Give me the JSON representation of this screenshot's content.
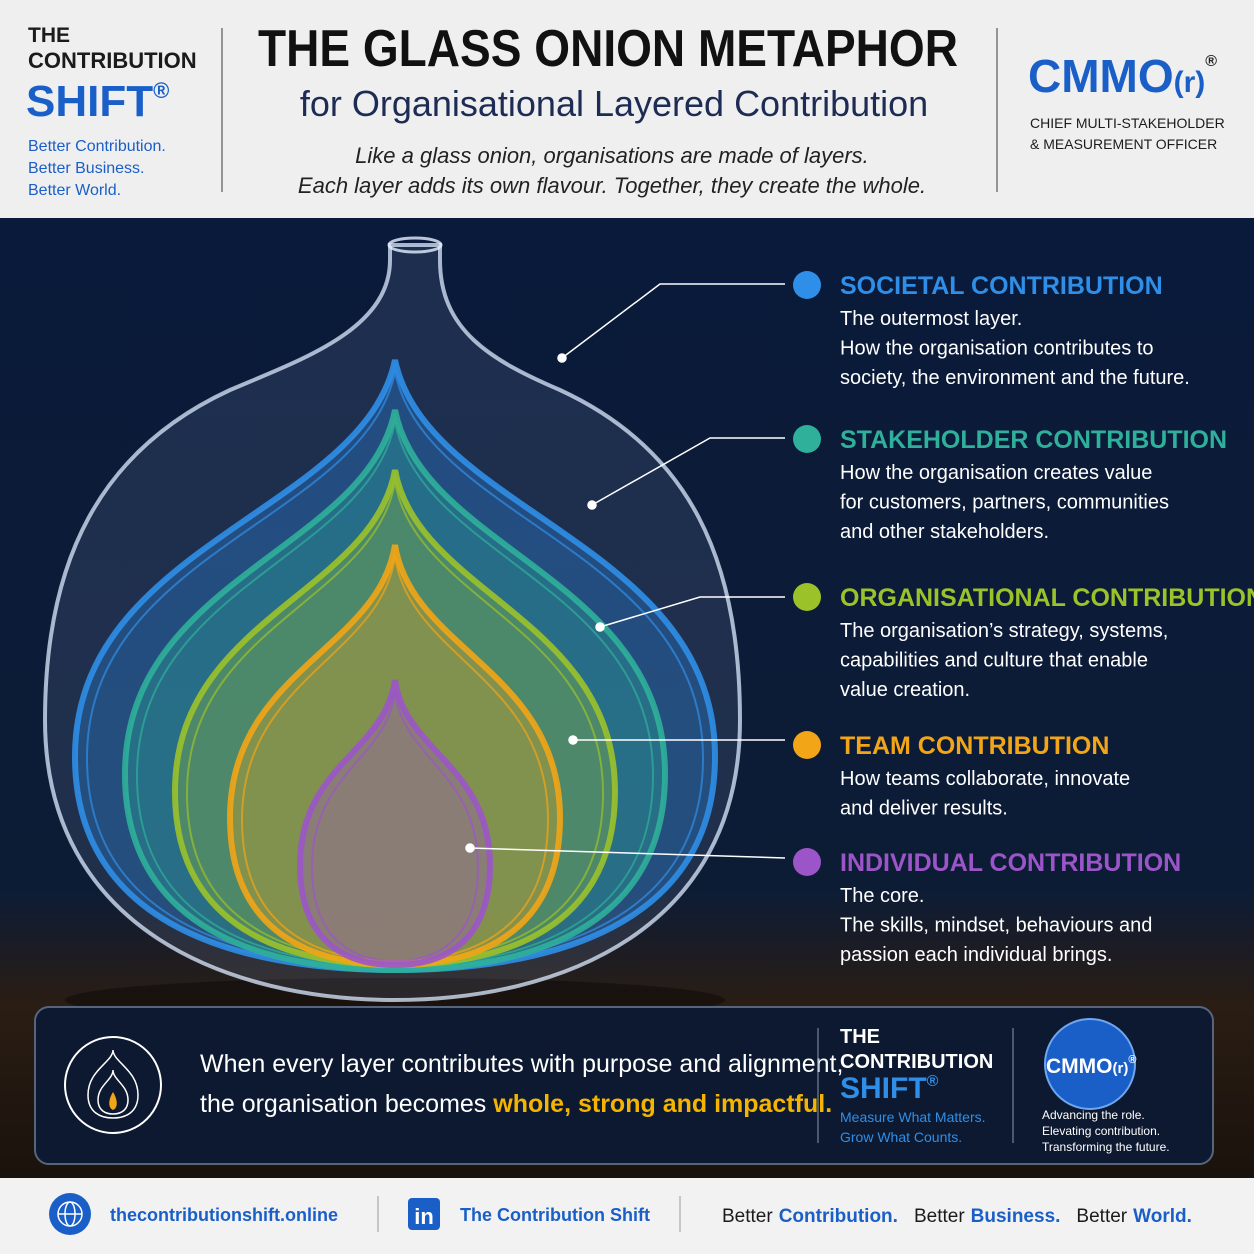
{
  "header": {
    "brand": {
      "line1": "THE",
      "line2": "CONTRIBUTION",
      "line3": "SHIFT",
      "mark": "®",
      "taglines": [
        "Better Contribution.",
        "Better Business.",
        "Better World."
      ]
    },
    "title": "THE GLASS ONION METAPHOR",
    "subtitle": "for Organisational Layered Contribution",
    "intro": [
      "Like a glass onion, organisations are made of layers.",
      "Each layer adds its own flavour.  Together, they create the whole."
    ],
    "cmmo": {
      "name": "CMMO",
      "suffix": "(r)",
      "mark": "®",
      "role": [
        "CHIEF MULTI-STAKEHOLDER",
        "& MEASUREMENT OFFICER"
      ]
    }
  },
  "layers": [
    {
      "title": "SOCIETAL CONTRIBUTION",
      "color": "#2f8fe8",
      "lines": [
        "The outermost layer.",
        "How the organisation contributes to",
        "society, the environment and the future."
      ]
    },
    {
      "title": "STAKEHOLDER CONTRIBUTION",
      "color": "#2fb09a",
      "lines": [
        "How the organisation creates value",
        "for customers, partners, communities",
        "and other stakeholders."
      ]
    },
    {
      "title": "ORGANISATIONAL CONTRIBUTION",
      "color": "#9cc22a",
      "lines": [
        "The organisation’s strategy, systems,",
        "capabilities and culture that enable",
        "value creation."
      ]
    },
    {
      "title": "TEAM CONTRIBUTION",
      "color": "#f2a516",
      "lines": [
        "How teams collaborate, innovate",
        "and deliver results."
      ]
    },
    {
      "title": "INDIVIDUAL CONTRIBUTION",
      "color": "#9b55c9",
      "lines": [
        "The core.",
        "The skills, mindset, behaviours and",
        "passion each individual brings."
      ]
    }
  ],
  "summary": {
    "line1": "When every layer contributes with purpose and alignment,",
    "line2": "the organisation becomes ",
    "highlight": "whole, strong and impactful",
    "end": ".",
    "brand": {
      "line1": "THE",
      "line2": "CONTRIBUTION",
      "line3": "SHIFT",
      "mark": "®",
      "taglines": [
        "Measure What Matters.",
        "Grow What Counts."
      ]
    },
    "cmmo": {
      "name": "CMMO",
      "suffix": "(r)",
      "mark": "®",
      "lines": [
        "Advancing the role.",
        "Elevating contribution.",
        "Transforming the future."
      ]
    }
  },
  "footer": {
    "website": "thecontributionshift.online",
    "linkedin_icon": "in",
    "linkedin": "The Contribution Shift",
    "tagline": [
      [
        "Better",
        "Contribution."
      ],
      [
        "Better",
        "Business."
      ],
      [
        "Better",
        "World."
      ]
    ]
  }
}
